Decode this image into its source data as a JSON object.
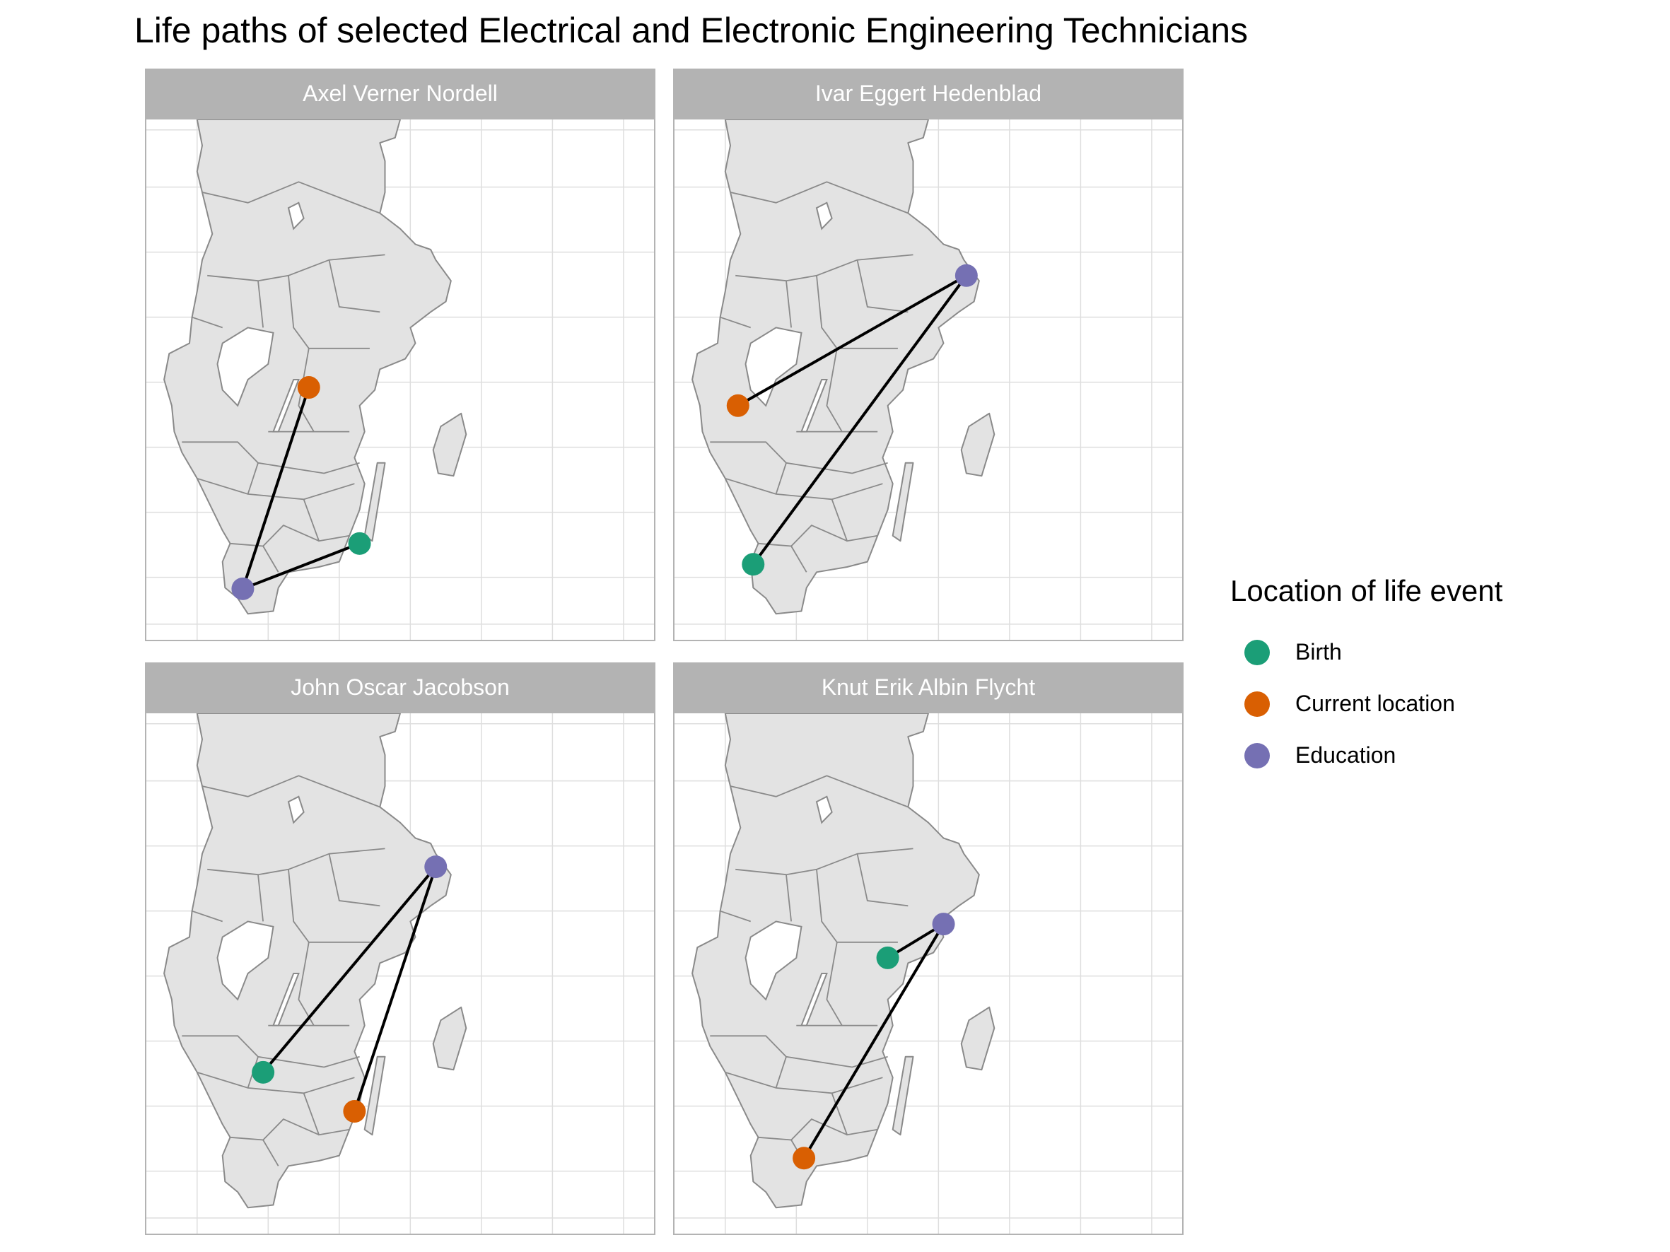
{
  "title": "Life paths of selected Electrical and Electronic Engineering Technicians",
  "colors": {
    "Birth": "#1b9e77",
    "Current location": "#d95f02",
    "Education": "#7570b3",
    "land": "#e3e3e3",
    "border": "#8a8a8a",
    "grid": "#dedede",
    "strip": "#b3b3b3",
    "path": "#000000"
  },
  "panels": [
    {
      "name": "Axel Verner Nordell",
      "path": [
        {
          "event": "Birth",
          "place": [
            0.42,
            0.815
          ]
        },
        {
          "event": "Education",
          "place": [
            0.19,
            0.902
          ]
        },
        {
          "event": "Current location",
          "place": [
            0.32,
            0.515
          ]
        }
      ]
    },
    {
      "name": "Ivar Eggert Hedenblad",
      "path": [
        {
          "event": "Birth",
          "place": [
            0.155,
            0.855
          ]
        },
        {
          "event": "Education",
          "place": [
            0.575,
            0.3
          ]
        },
        {
          "event": "Current location",
          "place": [
            0.125,
            0.55
          ]
        }
      ]
    },
    {
      "name": "John Oscar Jacobson",
      "path": [
        {
          "event": "Birth",
          "place": [
            0.23,
            0.69
          ]
        },
        {
          "event": "Education",
          "place": [
            0.57,
            0.295
          ]
        },
        {
          "event": "Current location",
          "place": [
            0.41,
            0.765
          ]
        }
      ]
    },
    {
      "name": "Knut Erik Albin Flycht",
      "path": [
        {
          "event": "Birth",
          "place": [
            0.42,
            0.47
          ]
        },
        {
          "event": "Education",
          "place": [
            0.53,
            0.405
          ]
        },
        {
          "event": "Current location",
          "place": [
            0.255,
            0.855
          ]
        }
      ]
    }
  ],
  "legend": {
    "title": "Location of life event",
    "items": [
      "Birth",
      "Current location",
      "Education"
    ]
  }
}
